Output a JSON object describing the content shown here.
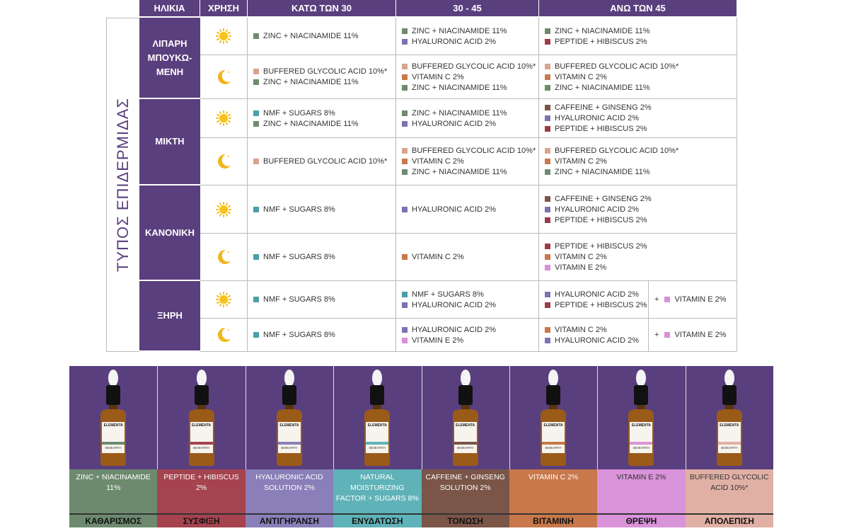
{
  "table": {
    "side_label": "ΤΥΠΟΣ ΕΠΙΔΕΡΜΙΔΑΣ",
    "header": [
      "ΗΛΙΚΙΑ",
      "ΧΡΗΣΗ",
      "ΚΑΤΩ ΤΩΝ 30",
      "30 - 45",
      "ΑΝΩ ΤΩΝ 45"
    ],
    "rows": [
      {
        "skin": [
          "ΛΙΠΑΡΗ",
          "ΜΠΟΥΚΩ-",
          "ΜΕΝΗ"
        ],
        "day": [
          [
            {
              "text": "ZINC + NIACINAMIDE 11%",
              "color": "#6f8a6e"
            }
          ],
          [
            {
              "text": "ZINC + NIACINAMIDE 11%",
              "color": "#6f8a6e"
            },
            {
              "text": "HYALURONIC ACID 2%",
              "color": "#7d72b0"
            }
          ],
          [
            {
              "text": "ZINC + NIACINAMIDE 11%",
              "color": "#6f8a6e"
            },
            {
              "text": "PEPTIDE + HIBISCUS 2%",
              "color": "#9b3a4a"
            }
          ]
        ],
        "night": [
          [
            {
              "text": "BUFFERED GLYCOLIC ACID 10%*",
              "color": "#d9a48f"
            },
            {
              "text": "ZINC + NIACINAMIDE 11%",
              "color": "#6f8a6e"
            }
          ],
          [
            {
              "text": "BUFFERED GLYCOLIC ACID 10%*",
              "color": "#d9a48f"
            },
            {
              "text": "VITAMIN C 2%",
              "color": "#c8784a"
            },
            {
              "text": "ZINC + NIACINAMIDE 11%",
              "color": "#6f8a6e"
            }
          ],
          [
            {
              "text": "BUFFERED GLYCOLIC ACID 10%*",
              "color": "#d9a48f"
            },
            {
              "text": "VITAMIN C 2%",
              "color": "#c8784a"
            },
            {
              "text": "ZINC + NIACINAMIDE 11%",
              "color": "#6f8a6e"
            }
          ]
        ]
      },
      {
        "skin": [
          "ΜΙΚΤΗ"
        ],
        "day": [
          [
            {
              "text": "NMF + SUGARS 8%",
              "color": "#4aa0a6"
            },
            {
              "text": "ZINC + NIACINAMIDE 11%",
              "color": "#6f8a6e"
            }
          ],
          [
            {
              "text": "ZINC + NIACINAMIDE 11%",
              "color": "#6f8a6e"
            },
            {
              "text": "HYALURONIC ACID 2%",
              "color": "#7d72b0"
            }
          ],
          [
            {
              "text": "CAFFEINE + GINSENG 2%",
              "color": "#7a5548"
            },
            {
              "text": "HYALURONIC ACID 2%",
              "color": "#7d72b0"
            },
            {
              "text": "PEPTIDE + HIBISCUS 2%",
              "color": "#9b3a4a"
            }
          ]
        ],
        "night": [
          [
            {
              "text": "BUFFERED GLYCOLIC ACID 10%*",
              "color": "#d9a48f"
            }
          ],
          [
            {
              "text": "BUFFERED GLYCOLIC ACID 10%*",
              "color": "#d9a48f"
            },
            {
              "text": "VITAMIN C 2%",
              "color": "#c8784a"
            },
            {
              "text": "ZINC + NIACINAMIDE 11%",
              "color": "#6f8a6e"
            }
          ],
          [
            {
              "text": "BUFFERED GLYCOLIC ACID 10%*",
              "color": "#d9a48f"
            },
            {
              "text": "VITAMIN C 2%",
              "color": "#c8784a"
            },
            {
              "text": "ZINC + NIACINAMIDE 11%",
              "color": "#6f8a6e"
            }
          ]
        ]
      },
      {
        "skin": [
          "ΚΑΝΟΝΙΚΗ"
        ],
        "day": [
          [
            {
              "text": "NMF + SUGARS 8%",
              "color": "#4aa0a6"
            }
          ],
          [
            {
              "text": "HYALURONIC ACID 2%",
              "color": "#7d72b0"
            }
          ],
          [
            {
              "text": "CAFFEINE + GINSENG 2%",
              "color": "#7a5548"
            },
            {
              "text": "HYALURONIC ACID 2%",
              "color": "#7d72b0"
            },
            {
              "text": "PEPTIDE + HIBISCUS 2%",
              "color": "#9b3a4a"
            }
          ]
        ],
        "night": [
          [
            {
              "text": "NMF + SUGARS 8%",
              "color": "#4aa0a6"
            }
          ],
          [
            {
              "text": "VITAMIN C 2%",
              "color": "#c8784a"
            }
          ],
          [
            {
              "text": "PEPTIDE + HIBISCUS 2%",
              "color": "#9b3a4a"
            },
            {
              "text": "VITAMIN C 2%",
              "color": "#c8784a"
            },
            {
              "text": "VITAMIN E 2%",
              "color": "#d890d8"
            }
          ]
        ]
      },
      {
        "skin": [
          "ΞΗΡΗ"
        ],
        "day": [
          [
            {
              "text": "NMF + SUGARS 8%",
              "color": "#4aa0a6"
            }
          ],
          [
            {
              "text": "NMF + SUGARS 8%",
              "color": "#4aa0a6"
            },
            {
              "text": "HYALURONIC ACID 2%",
              "color": "#7d72b0"
            }
          ],
          [
            {
              "text": "HYALURONIC ACID 2%",
              "color": "#7d72b0"
            },
            {
              "text": "PEPTIDE + HIBISCUS 2%",
              "color": "#9b3a4a"
            }
          ]
        ],
        "day_extra": {
          "prefix": "+",
          "text": "VITAMIN E 2%",
          "color": "#d890d8"
        },
        "night": [
          [
            {
              "text": "NMF + SUGARS 8%",
              "color": "#4aa0a6"
            }
          ],
          [
            {
              "text": "HYALURONIC ACID 2%",
              "color": "#7d72b0"
            },
            {
              "text": "VITAMIN E 2%",
              "color": "#d890d8"
            }
          ],
          [
            {
              "text": "VITAMIN C 2%",
              "color": "#c8784a"
            },
            {
              "text": "HYALURONIC ACID 2%",
              "color": "#7d72b0"
            }
          ]
        ],
        "night_extra": {
          "prefix": "+",
          "text": "VITAMIN E 2%",
          "color": "#d890d8"
        }
      }
    ]
  },
  "products": {
    "brand": "ELEMENTA",
    "maker": "BIOEARTH",
    "items": [
      {
        "label": "ZINC + NIACINAMIDE 11%",
        "category": "ΚΑΘΑΡΙΣΜΟΣ",
        "color": "#6d8a6f"
      },
      {
        "label": "PEPTIDE + HIBISCUS 2%",
        "category": "ΣΥΣΦΙΞΗ",
        "color": "#a5434f"
      },
      {
        "label": "HYALURONIC ACID SOLUTION 2%",
        "category": "ΑΝΤΙΓΗΡΑΝΣΗ",
        "color": "#8a7fb8"
      },
      {
        "label": "NATURAL MOISTURIZING FACTOR + SUGARS 8%",
        "category": "ΕΝΥΔΑΤΩΣΗ",
        "color": "#5fb3b8"
      },
      {
        "label": "CAFFEINE + GINSENG SOLUTION 2%",
        "category": "ΤΟΝΩΣΗ",
        "color": "#7a5548"
      },
      {
        "label": "VITAMIN C 2%",
        "category": "ΒΙΤΑΜΙΝΗ",
        "color": "#c8784a"
      },
      {
        "label": "VITAMIN E 2%",
        "category": "ΘΡΕΨΗ",
        "color": "#d993d9"
      },
      {
        "label": "BUFFERED GLYCOLIC ACID 10%*",
        "category": "ΑΠΟΛΕΠΙΣΗ",
        "color": "#e0b0a5"
      }
    ]
  }
}
